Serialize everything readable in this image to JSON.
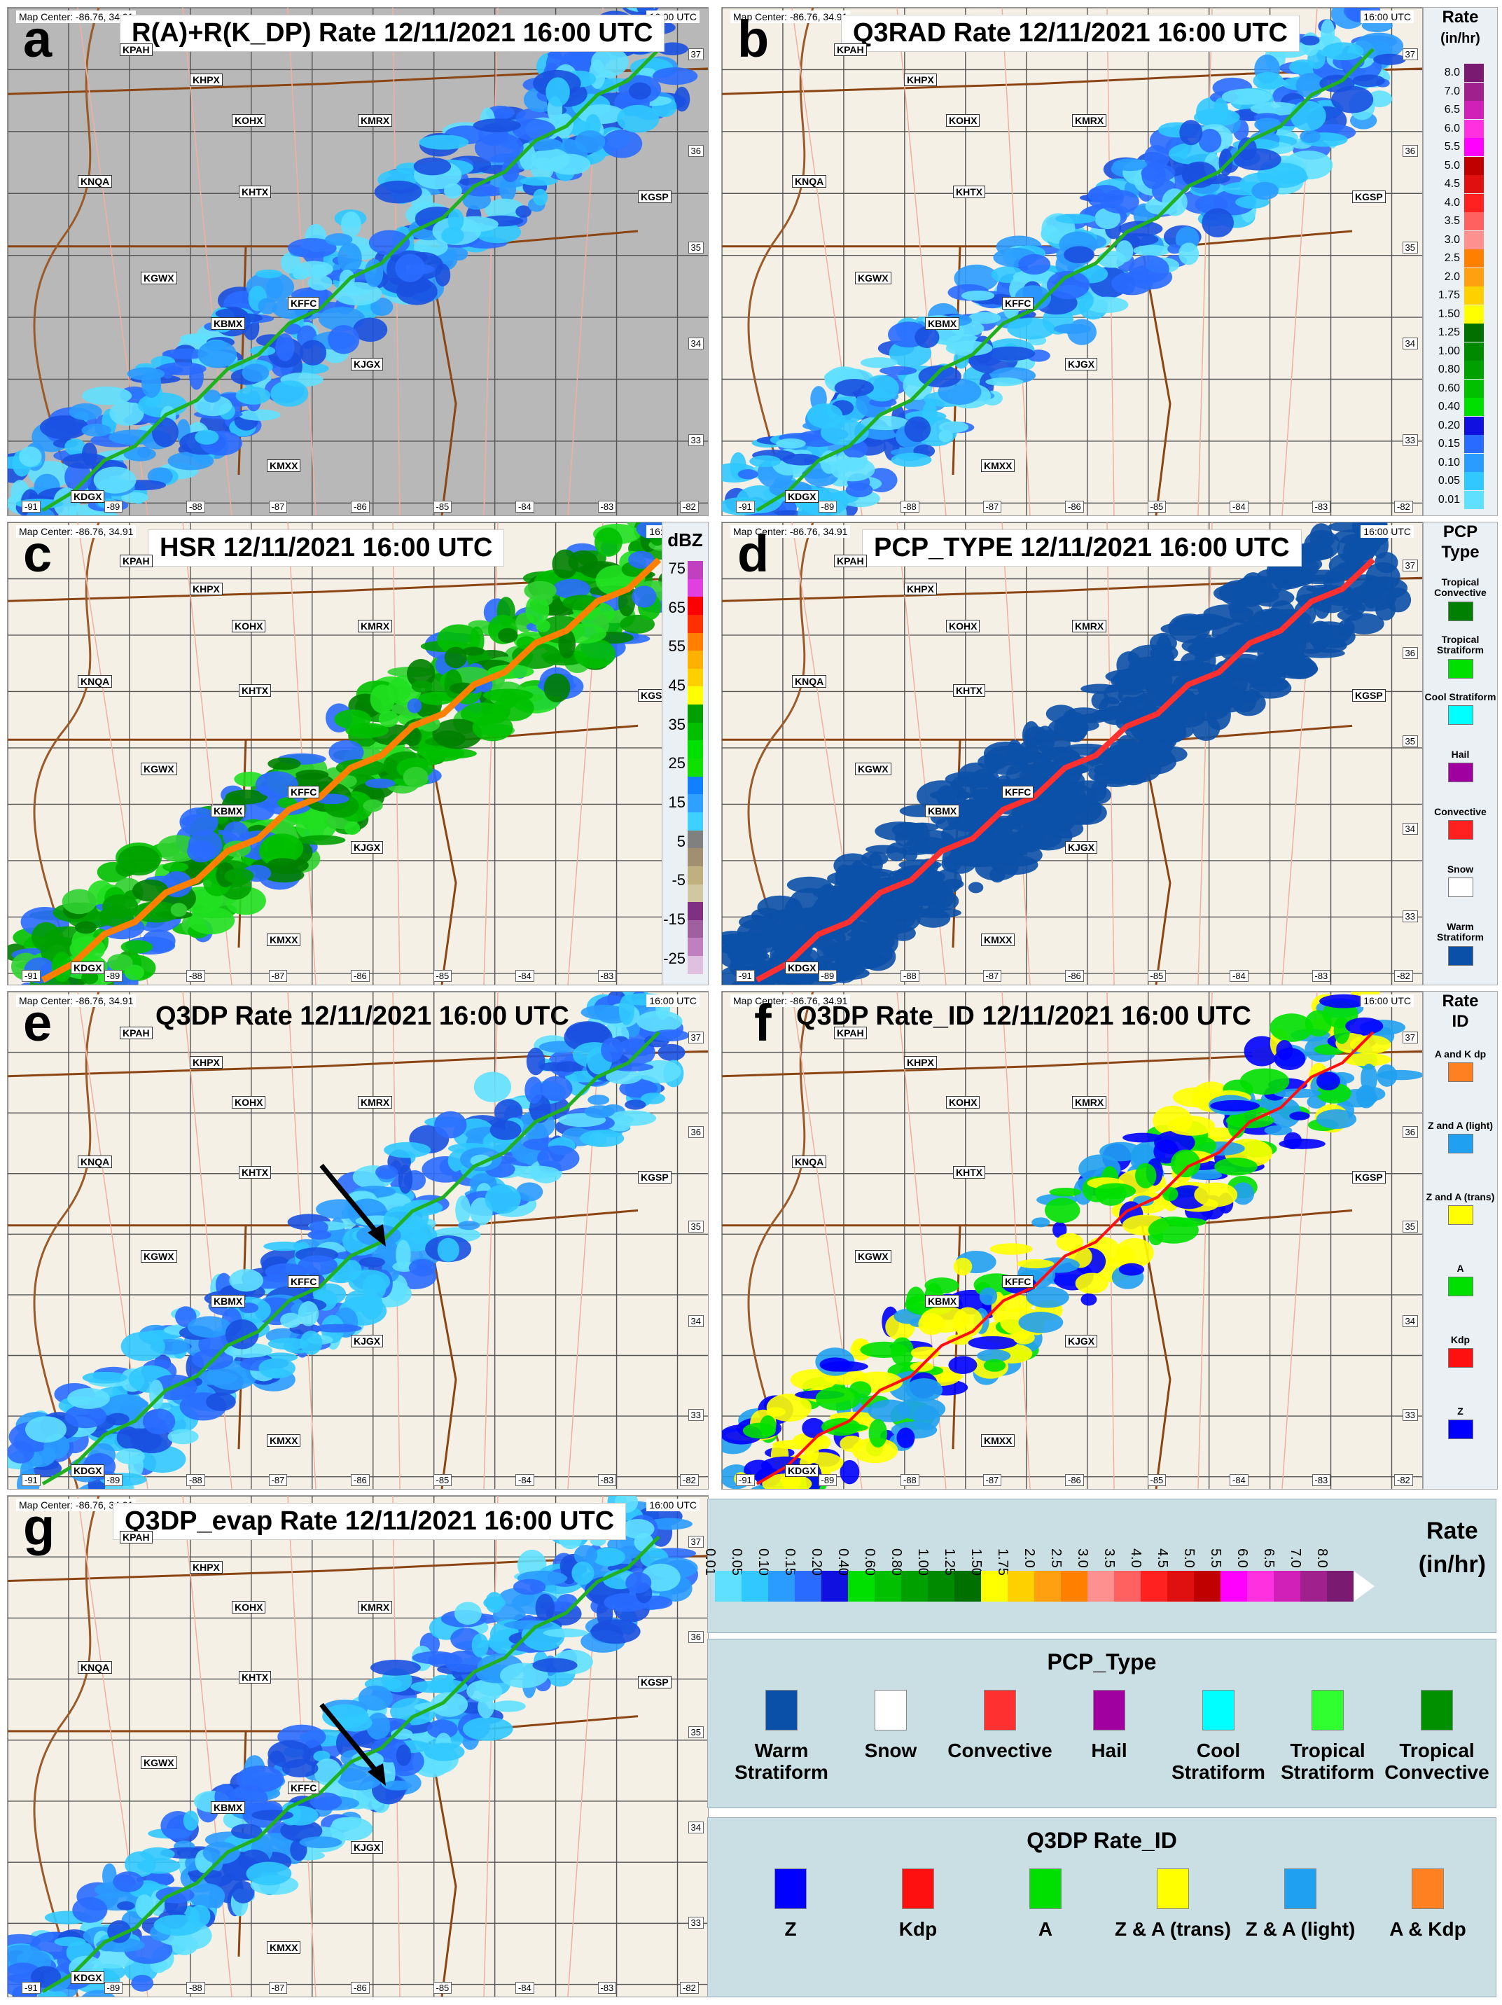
{
  "common": {
    "date": "12/11/2021 16:00 UTC",
    "map_center": "Map Center: -86.76, 34.91",
    "time": "16:00 UTC",
    "radars": [
      "KPAH",
      "KHPX",
      "KOHX",
      "KMRX",
      "KNQA",
      "KHTX",
      "KGSP",
      "KGWX",
      "KBMX",
      "KFFC",
      "KJGX",
      "KDGX",
      "KMXX"
    ],
    "lons": [
      "-91",
      "-89",
      "-88",
      "-87",
      "-86",
      "-85",
      "-84",
      "-83",
      "-82"
    ],
    "lats": [
      "37",
      "36",
      "35",
      "34",
      "33"
    ]
  },
  "panels": {
    "a": {
      "letter": "a",
      "title": "R(A)+R(K_DP) Rate   12/11/2021 16:00 UTC"
    },
    "b": {
      "letter": "b",
      "title": "Q3RAD Rate 12/11/2021 16:00 UTC"
    },
    "c": {
      "letter": "c",
      "title": "HSR      12/11/2021 16:00 UTC"
    },
    "d": {
      "letter": "d",
      "title": "PCP_TYPE      12/11/2021 16:00 UTC"
    },
    "e": {
      "letter": "e",
      "title": "Q3DP Rate       12/11/2021 16:00 UTC"
    },
    "f": {
      "letter": "f",
      "title": "Q3DP Rate_ID  12/11/2021 16:00 UTC"
    },
    "g": {
      "letter": "g",
      "title": "Q3DP_evap Rate     12/11/2021 16:00 UTC"
    }
  },
  "rate_legend": {
    "title_line1": "Rate",
    "title_line2": "(in/hr)",
    "values": [
      "8.0",
      "7.0",
      "6.5",
      "6.0",
      "5.5",
      "5.0",
      "4.5",
      "4.0",
      "3.5",
      "3.0",
      "2.5",
      "2.0",
      "1.75",
      "1.50",
      "1.25",
      "1.00",
      "0.80",
      "0.60",
      "0.40",
      "0.20",
      "0.15",
      "0.10",
      "0.05",
      "0.01"
    ],
    "colors": [
      "#7a1a70",
      "#a0208e",
      "#d020b8",
      "#ff30e0",
      "#ff00ff",
      "#c00000",
      "#e01010",
      "#ff2020",
      "#ff6060",
      "#ff9090",
      "#ff8000",
      "#ffa010",
      "#ffd000",
      "#ffff00",
      "#007000",
      "#008a00",
      "#00a000",
      "#00c000",
      "#00e000",
      "#1010e0",
      "#2a6bff",
      "#2a9bff",
      "#30c8ff",
      "#60e0ff"
    ]
  },
  "dbz_legend": {
    "title": "dBZ",
    "labels": [
      "75",
      "65",
      "55",
      "45",
      "35",
      "25",
      "15",
      "5",
      "-5",
      "-15",
      "-25"
    ],
    "colors": [
      "#c040c0",
      "#e040e0",
      "#ff0000",
      "#ff3000",
      "#ff8000",
      "#ffb000",
      "#ffd000",
      "#ffff00",
      "#00a000",
      "#00c000",
      "#00e000",
      "#10e000",
      "#1080ff",
      "#30a0ff",
      "#40d0ff",
      "#808080",
      "#a09070",
      "#c0b080",
      "#d0c8a0",
      "#803080",
      "#a060a0",
      "#c080c0",
      "#e0c0e0"
    ]
  },
  "pcp_legend_small": {
    "title_line1": "PCP",
    "title_line2": "Type",
    "items": [
      {
        "label": "Tropical Convective",
        "color": "#008000"
      },
      {
        "label": "Tropical Stratiform",
        "color": "#00e000"
      },
      {
        "label": "Cool Stratiform",
        "color": "#00ffff"
      },
      {
        "label": "Hail",
        "color": "#a000a0"
      },
      {
        "label": "Convective",
        "color": "#ff2020"
      },
      {
        "label": "Snow",
        "color": "#ffffff"
      },
      {
        "label": "Warm Stratiform",
        "color": "#0b50a8"
      }
    ]
  },
  "rateid_legend_small": {
    "title_line1": "Rate",
    "title_line2": "ID",
    "items": [
      {
        "label": "A and K dp",
        "color": "#ff8020"
      },
      {
        "label": "Z and A (light)",
        "color": "#20a0f0"
      },
      {
        "label": "Z and A (trans)",
        "color": "#ffff00"
      },
      {
        "label": "A",
        "color": "#00e000"
      },
      {
        "label": "Kdp",
        "color": "#ff1010"
      },
      {
        "label": "Z",
        "color": "#0000ff"
      }
    ]
  },
  "big_rate_legend": {
    "title_line1": "Rate",
    "title_line2": "(in/hr)",
    "values": [
      "0.01",
      "0.05",
      "0.10",
      "0.15",
      "0.20",
      "0.40",
      "0.60",
      "0.80",
      "1.00",
      "1.25",
      "1.50",
      "1.75",
      "2.0",
      "2.5",
      "3.0",
      "3.5",
      "4.0",
      "4.5",
      "5.0",
      "5.5",
      "6.0",
      "6.5",
      "7.0",
      "8.0"
    ],
    "colors": [
      "#60e0ff",
      "#30c8ff",
      "#2a9bff",
      "#2a6bff",
      "#1010e0",
      "#00e000",
      "#00c000",
      "#00a000",
      "#008a00",
      "#007000",
      "#ffff00",
      "#ffd000",
      "#ffa010",
      "#ff8000",
      "#ff9090",
      "#ff6060",
      "#ff2020",
      "#e01010",
      "#c00000",
      "#ff00ff",
      "#ff30e0",
      "#d020b8",
      "#a0208e",
      "#7a1a70"
    ]
  },
  "big_pcp_legend": {
    "title": "PCP_Type",
    "items": [
      {
        "label": "Warm Stratiform",
        "color": "#0b50a8"
      },
      {
        "label": "Snow",
        "color": "#ffffff"
      },
      {
        "label": "Convective",
        "color": "#ff3030"
      },
      {
        "label": "Hail",
        "color": "#a000a0"
      },
      {
        "label": "Cool Stratiform",
        "color": "#00ffff"
      },
      {
        "label": "Tropical Stratiform",
        "color": "#30ff30"
      },
      {
        "label": "Tropical Convective",
        "color": "#009000"
      }
    ]
  },
  "big_rateid_legend": {
    "title": "Q3DP Rate_ID",
    "items": [
      {
        "label": "Z",
        "color": "#0000ff"
      },
      {
        "label": "Kdp",
        "color": "#ff1010"
      },
      {
        "label": "A",
        "color": "#00e000"
      },
      {
        "label": "Z & A (trans)",
        "color": "#ffff00"
      },
      {
        "label": "Z & A (light)",
        "color": "#20a0f0"
      },
      {
        "label": "A & Kdp",
        "color": "#ff8020"
      }
    ]
  }
}
